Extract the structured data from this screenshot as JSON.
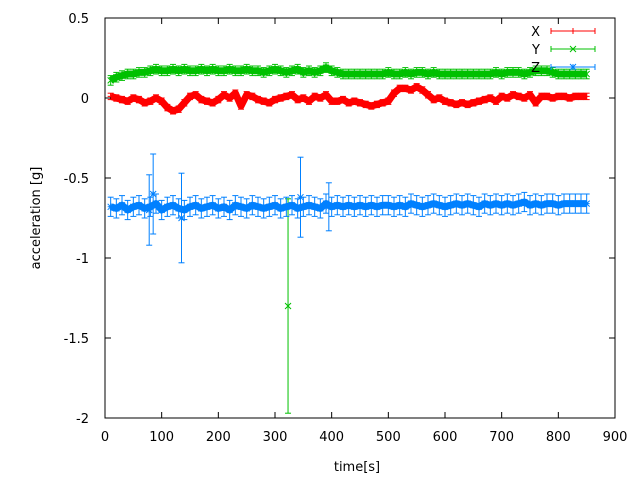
{
  "chart_data": {
    "type": "scatter",
    "title": "",
    "xlabel": "time[s]",
    "ylabel": "acceleration [g]",
    "xlim": [
      0,
      900
    ],
    "ylim": [
      -2,
      0.5
    ],
    "xticks": [
      "0",
      "100",
      "200",
      "300",
      "400",
      "500",
      "600",
      "700",
      "800",
      "900"
    ],
    "yticks": [
      "0.5",
      "0",
      "-0.5",
      "-1",
      "-1.5",
      "-2"
    ],
    "grid": false,
    "legend_position": "top-right",
    "x": [
      10,
      20,
      30,
      40,
      50,
      60,
      70,
      80,
      90,
      100,
      110,
      120,
      130,
      140,
      150,
      160,
      170,
      180,
      190,
      200,
      210,
      220,
      230,
      240,
      250,
      260,
      270,
      280,
      290,
      300,
      310,
      320,
      330,
      340,
      350,
      360,
      370,
      380,
      390,
      400,
      410,
      420,
      430,
      440,
      450,
      460,
      470,
      480,
      490,
      500,
      510,
      520,
      530,
      540,
      550,
      560,
      570,
      580,
      590,
      600,
      610,
      620,
      630,
      640,
      650,
      660,
      670,
      680,
      690,
      700,
      710,
      720,
      730,
      740,
      750,
      760,
      770,
      780,
      790,
      800,
      810,
      820,
      830,
      840,
      850
    ],
    "series": [
      {
        "name": "X",
        "color": "#ff0000",
        "marker": "plus",
        "error": 0.02,
        "values": [
          0.01,
          0.0,
          -0.01,
          -0.02,
          0.0,
          -0.01,
          -0.03,
          -0.02,
          0.0,
          -0.02,
          -0.06,
          -0.08,
          -0.07,
          -0.03,
          0.01,
          0.02,
          -0.01,
          -0.02,
          -0.03,
          -0.01,
          0.02,
          0.0,
          0.03,
          -0.05,
          0.02,
          0.01,
          -0.01,
          -0.02,
          -0.03,
          -0.01,
          0.0,
          0.01,
          0.02,
          -0.01,
          0.0,
          -0.02,
          0.01,
          0.0,
          0.02,
          -0.02,
          -0.02,
          -0.01,
          -0.03,
          -0.02,
          -0.03,
          -0.04,
          -0.05,
          -0.04,
          -0.03,
          -0.02,
          0.03,
          0.06,
          0.06,
          0.05,
          0.07,
          0.05,
          0.02,
          -0.01,
          0.0,
          -0.02,
          -0.03,
          -0.04,
          -0.03,
          -0.04,
          -0.03,
          -0.02,
          -0.01,
          0.0,
          -0.02,
          0.01,
          0.0,
          0.02,
          0.01,
          0.0,
          0.02,
          -0.03,
          0.01,
          0.01,
          0.0,
          0.01,
          0.01,
          0.0,
          0.01,
          0.01,
          0.01
        ]
      },
      {
        "name": "Y",
        "color": "#00c000",
        "marker": "cross",
        "error": 0.03,
        "values": [
          0.11,
          0.13,
          0.14,
          0.15,
          0.15,
          0.16,
          0.16,
          0.17,
          0.18,
          0.17,
          0.17,
          0.18,
          0.17,
          0.18,
          0.17,
          0.17,
          0.18,
          0.17,
          0.18,
          0.17,
          0.17,
          0.18,
          0.17,
          0.17,
          0.18,
          0.17,
          0.17,
          0.16,
          0.17,
          0.18,
          0.17,
          0.16,
          0.17,
          0.18,
          0.16,
          0.17,
          0.16,
          0.17,
          0.19,
          0.17,
          0.16,
          0.15,
          0.15,
          0.15,
          0.15,
          0.15,
          0.15,
          0.15,
          0.15,
          0.16,
          0.15,
          0.15,
          0.16,
          0.15,
          0.16,
          0.16,
          0.15,
          0.16,
          0.15,
          0.15,
          0.15,
          0.15,
          0.15,
          0.15,
          0.15,
          0.15,
          0.15,
          0.15,
          0.16,
          0.15,
          0.16,
          0.16,
          0.16,
          0.15,
          0.16,
          0.17,
          0.17,
          0.17,
          0.16,
          0.15,
          0.15,
          0.15,
          0.15,
          0.15,
          0.15
        ],
        "outliers": [
          {
            "x": 323,
            "y": -1.3,
            "error": 0.67
          }
        ]
      },
      {
        "name": "Z",
        "color": "#0080ff",
        "marker": "star",
        "error": 0.06,
        "values": [
          -0.68,
          -0.69,
          -0.67,
          -0.7,
          -0.68,
          -0.67,
          -0.69,
          -0.68,
          -0.66,
          -0.7,
          -0.68,
          -0.67,
          -0.69,
          -0.7,
          -0.68,
          -0.67,
          -0.69,
          -0.68,
          -0.67,
          -0.69,
          -0.68,
          -0.7,
          -0.67,
          -0.68,
          -0.69,
          -0.67,
          -0.68,
          -0.69,
          -0.68,
          -0.67,
          -0.69,
          -0.68,
          -0.67,
          -0.69,
          -0.68,
          -0.67,
          -0.68,
          -0.69,
          -0.66,
          -0.68,
          -0.67,
          -0.68,
          -0.67,
          -0.68,
          -0.67,
          -0.68,
          -0.67,
          -0.68,
          -0.67,
          -0.67,
          -0.68,
          -0.67,
          -0.68,
          -0.66,
          -0.67,
          -0.68,
          -0.67,
          -0.66,
          -0.67,
          -0.68,
          -0.67,
          -0.66,
          -0.67,
          -0.66,
          -0.67,
          -0.68,
          -0.66,
          -0.67,
          -0.66,
          -0.67,
          -0.66,
          -0.67,
          -0.66,
          -0.65,
          -0.67,
          -0.66,
          -0.67,
          -0.66,
          -0.66,
          -0.67,
          -0.66,
          -0.66,
          -0.66,
          -0.66,
          -0.66
        ],
        "outliers": [
          {
            "x": 85,
            "y": -0.6,
            "error": 0.25
          },
          {
            "x": 135,
            "y": -0.75,
            "error": 0.28
          },
          {
            "x": 78,
            "y": -0.7,
            "error": 0.22
          },
          {
            "x": 345,
            "y": -0.62,
            "error": 0.25
          },
          {
            "x": 395,
            "y": -0.68,
            "error": 0.15
          }
        ]
      }
    ]
  }
}
